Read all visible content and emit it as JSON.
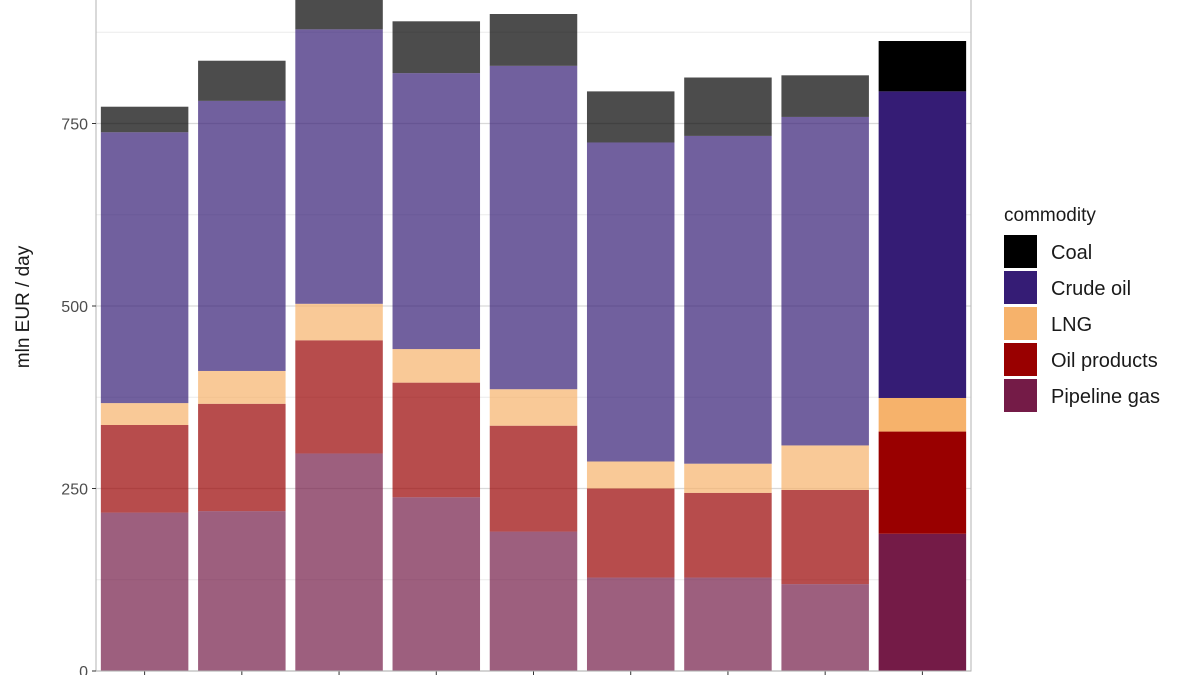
{
  "chart_data": {
    "type": "bar",
    "stacked": true,
    "ylabel": "mln EUR / day",
    "xlabel": "",
    "ylim": [
      0,
      925
    ],
    "y_ticks": [
      0,
      250,
      500,
      750
    ],
    "grid": true,
    "legend_placement": "right",
    "legend_title": "commodity",
    "categories": [
      "",
      "",
      "",
      "",
      "",
      "",
      "",
      "",
      ""
    ],
    "series": [
      {
        "name": "Pipeline gas",
        "color": "#741b47",
        "values": [
          217,
          219,
          298,
          238,
          191,
          128,
          128,
          119,
          188
        ]
      },
      {
        "name": "Oil products",
        "color": "#990000",
        "values": [
          120,
          147,
          155,
          157,
          145,
          122,
          116,
          129,
          140
        ]
      },
      {
        "name": "LNG",
        "color": "#f6b26b",
        "values": [
          30,
          45,
          50,
          46,
          50,
          37,
          40,
          61,
          46
        ]
      },
      {
        "name": "Crude oil",
        "color": "#351c75",
        "values": [
          371,
          370,
          376,
          378,
          443,
          437,
          449,
          450,
          420
        ]
      },
      {
        "name": "Coal",
        "color": "#000000",
        "values": [
          35,
          55,
          42,
          71,
          71,
          70,
          80,
          57,
          69
        ]
      }
    ],
    "faded_bar_opacity": 0.7,
    "highlighted_bar_index": 8,
    "legend_order": [
      "Coal",
      "Crude oil",
      "LNG",
      "Oil products",
      "Pipeline gas"
    ]
  }
}
